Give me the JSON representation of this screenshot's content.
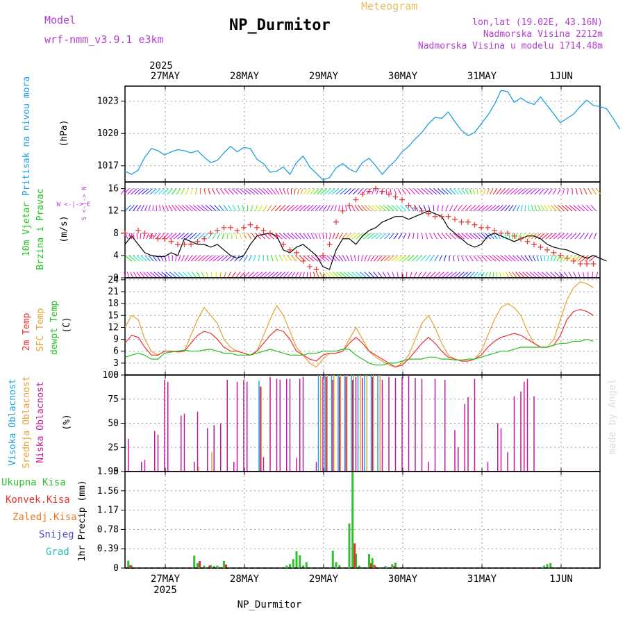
{
  "header": {
    "title": "NP_Durmitor",
    "subtitle": "Meteogram",
    "model_label": "Model",
    "model_name": "wrf-nmm_v3.9.1 e3km",
    "location": "lon,lat (19.02E, 43.16N)",
    "elevation": "Nadmorska Visina 2212m",
    "model_elevation": "Nadmorska Visina u modelu 1714.48m",
    "footer": "NP_Durmitor",
    "watermark": "made by Angel"
  },
  "colors": {
    "pressure": "#1ea0e0",
    "wind_speed": "#000000",
    "gust": "#e83030",
    "temp2m": "#e83030",
    "sfc_temp": "#e8a030",
    "dewpt": "#20c020",
    "cloud_high": "#20a0e0",
    "cloud_mid": "#e8a030",
    "cloud_low": "#c0189a",
    "precip_total": "#30c030",
    "precip_conv": "#e83030",
    "precip_frz": "#e87828",
    "precip_snow": "#4848e0",
    "precip_hail": "#20c0c0",
    "label_purple": "#b040d0",
    "label_gold": "#e8c060"
  },
  "time_axis": {
    "top_year": "2025",
    "bottom_year": "2025",
    "days": [
      "27MAY",
      "28MAY",
      "29MAY",
      "30MAY",
      "31MAY",
      "1JUN"
    ],
    "hours_total": 144
  },
  "chart_data": [
    {
      "type": "line",
      "panel": "pressure",
      "ylabel_title": "Pritisak na nivou mora",
      "ylabel_unit": "(hPa)",
      "ylim": [
        1015.5,
        1024.4
      ],
      "yticks": [
        1017,
        1020,
        1023
      ],
      "x_step_hours": 2,
      "values": [
        1016.5,
        1016.2,
        1016.6,
        1017.8,
        1018.6,
        1018.4,
        1018.0,
        1018.3,
        1018.5,
        1018.4,
        1018.2,
        1018.4,
        1017.8,
        1017.3,
        1017.5,
        1018.2,
        1018.8,
        1018.3,
        1018.7,
        1018.6,
        1017.6,
        1017.2,
        1016.4,
        1016.5,
        1016.9,
        1016.2,
        1017.3,
        1017.9,
        1016.9,
        1016.3,
        1015.7,
        1015.9,
        1016.8,
        1017.2,
        1016.7,
        1016.4,
        1017.3,
        1017.7,
        1017.0,
        1016.2,
        1016.9,
        1017.5,
        1018.3,
        1018.8,
        1019.5,
        1020.1,
        1020.9,
        1021.5,
        1021.4,
        1022.0,
        1021.1,
        1020.3,
        1019.8,
        1020.1,
        1020.9,
        1021.7,
        1022.7,
        1024.0,
        1023.9,
        1022.9,
        1023.3,
        1022.9,
        1022.7,
        1023.4,
        1022.6,
        1021.8,
        1021.0,
        1021.4,
        1021.8,
        1022.5,
        1023.1,
        1022.6,
        1022.5,
        1022.3,
        1021.4,
        1020.4
      ]
    },
    {
      "type": "line",
      "panel": "wind",
      "ylabel_title": "10m Vjetar",
      "ylabel_title2": "Brzina i Pravac",
      "ylabel_unit": "(m/s)",
      "direction_legend": "W <-|-> E",
      "direction_legend_ns": "S <-|-> N",
      "ylim": [
        0,
        17.2
      ],
      "yticks": [
        0,
        4,
        8,
        12,
        16
      ],
      "x_step_hours": 2,
      "series": [
        {
          "name": "wind_speed",
          "values": [
            6,
            7.5,
            6,
            4.5,
            4,
            3.8,
            3.8,
            4.5,
            4,
            7,
            6.5,
            6,
            6,
            5.5,
            6,
            5,
            4,
            3.5,
            4,
            6,
            7.5,
            7.8,
            8,
            7.5,
            5,
            4.5,
            5.5,
            6,
            5,
            4,
            2,
            1.5,
            5,
            7,
            7,
            6,
            7.5,
            8.5,
            9,
            10,
            10.5,
            11,
            11,
            10.5,
            11,
            11.5,
            12,
            11.5,
            11,
            9,
            8,
            7,
            6,
            5.5,
            6,
            7.5,
            8,
            7.5,
            7,
            6.5,
            7,
            7.5,
            7.5,
            7,
            6,
            5.5,
            5.2,
            5,
            4.5,
            4,
            3.5,
            4,
            3.5,
            3
          ]
        },
        {
          "name": "gust",
          "values": [
            8,
            7.5,
            8.5,
            8,
            7.5,
            7,
            7,
            6.5,
            6,
            6,
            6,
            6.5,
            7,
            8,
            8.5,
            9,
            9,
            8.5,
            9,
            9.5,
            9,
            8.5,
            8,
            7.5,
            6,
            5,
            4.5,
            3,
            2,
            1.5,
            4,
            6,
            10,
            12,
            13,
            14,
            15,
            15.5,
            16,
            15.5,
            15,
            14.5,
            14,
            13,
            12.5,
            12,
            11.5,
            11,
            11,
            11,
            10.5,
            10,
            10,
            9.5,
            9,
            9,
            8.5,
            8,
            8,
            7.5,
            7,
            6.5,
            6,
            5.5,
            5,
            4.5,
            4,
            3.5,
            3,
            2.5,
            2.5,
            2.5
          ]
        }
      ]
    },
    {
      "type": "line",
      "panel": "temperature",
      "ylabel_title": "2m Temp",
      "ylabel_title2": "SFC Temp",
      "ylabel_title3": "dewpt Temp",
      "ylabel_unit": "(C)",
      "ylim": [
        0,
        24.5
      ],
      "yticks": [
        0,
        3,
        6,
        9,
        12,
        15,
        18,
        21,
        24
      ],
      "x_step_hours": 2,
      "series": [
        {
          "name": "2m Temp",
          "values": [
            8,
            10,
            9.5,
            7,
            5,
            5,
            6,
            6,
            5.8,
            6,
            8,
            10,
            11,
            10.5,
            9,
            7,
            6,
            6,
            5.5,
            5,
            6,
            8,
            10,
            11.5,
            11,
            9,
            6,
            5,
            4,
            3.5,
            5,
            5.5,
            5.5,
            6,
            8,
            9.5,
            8,
            6,
            5,
            4,
            3,
            2,
            2.5,
            4,
            6,
            8,
            9.5,
            8,
            6,
            4.5,
            4,
            3.5,
            3.5,
            4,
            5,
            7,
            8.5,
            9.5,
            10,
            10.5,
            10,
            9,
            8,
            7,
            7,
            7.5,
            10,
            14,
            16,
            16.5,
            16,
            15
          ]
        },
        {
          "name": "SFC Temp",
          "values": [
            12,
            15,
            14,
            9,
            6,
            5,
            6,
            6,
            6,
            6,
            10,
            14,
            17,
            15,
            13,
            9,
            7,
            6,
            5.5,
            5,
            6,
            10,
            14,
            17.5,
            15,
            11,
            7,
            5,
            3,
            2,
            4,
            5.5,
            5.5,
            6,
            9,
            12,
            9,
            6,
            4.5,
            3.5,
            2.5,
            2,
            3,
            5,
            9,
            13,
            15,
            12,
            8,
            5,
            4,
            3.5,
            3.5,
            4,
            6,
            10,
            14,
            17,
            18,
            17,
            15,
            11,
            8,
            7,
            7,
            9,
            14,
            19,
            22,
            23.5,
            23,
            22
          ]
        },
        {
          "name": "dewpt Temp",
          "values": [
            4.5,
            5,
            5.5,
            5,
            4,
            4,
            5.5,
            5.8,
            6,
            6.3,
            6,
            6,
            6.3,
            6.5,
            6,
            5.5,
            5.5,
            5,
            5,
            5,
            5.5,
            6,
            6.5,
            6,
            5.5,
            5,
            5,
            5,
            5.5,
            5.5,
            6,
            6,
            6,
            6.5,
            6.5,
            5,
            4,
            3,
            2.5,
            2.5,
            3,
            3,
            3.5,
            4,
            4,
            4,
            4.5,
            4.5,
            4,
            4,
            3.8,
            3.8,
            4,
            4,
            4.5,
            5,
            5.5,
            6,
            6,
            6.5,
            7,
            7,
            7,
            7,
            7,
            7.5,
            8,
            8,
            8.5,
            8.5,
            9,
            8.5
          ]
        }
      ]
    },
    {
      "type": "bar",
      "panel": "clouds",
      "ylabel_title": "Visoka Oblacnost",
      "ylabel_title2": "Srednja Oblacnost",
      "ylabel_title3": "Niska Oblacnost",
      "ylabel_unit": "(%)",
      "ylim": [
        0,
        100
      ],
      "yticks": [
        0,
        25,
        50,
        75,
        100
      ],
      "series": [
        {
          "name": "Niska",
          "points": [
            [
              1,
              34
            ],
            [
              5,
              10
            ],
            [
              6,
              12
            ],
            [
              9,
              42
            ],
            [
              10,
              38
            ],
            [
              12,
              95
            ],
            [
              13,
              93
            ],
            [
              17,
              58
            ],
            [
              18,
              60
            ],
            [
              21,
              10
            ],
            [
              22,
              62
            ],
            [
              25,
              45
            ],
            [
              27,
              48
            ],
            [
              29,
              50
            ],
            [
              31,
              95
            ],
            [
              33,
              10
            ],
            [
              34,
              93
            ],
            [
              36,
              95
            ],
            [
              37,
              93
            ],
            [
              41,
              88
            ],
            [
              42,
              15
            ],
            [
              44,
              98
            ],
            [
              46,
              96
            ],
            [
              47,
              95
            ],
            [
              49,
              96
            ],
            [
              50,
              96
            ],
            [
              52,
              14
            ],
            [
              53,
              96
            ],
            [
              54,
              98
            ],
            [
              58,
              10
            ],
            [
              60,
              98
            ],
            [
              61,
              98
            ],
            [
              63,
              95
            ],
            [
              65,
              98
            ],
            [
              67,
              98
            ],
            [
              69,
              95
            ],
            [
              70,
              98
            ],
            [
              72,
              97
            ],
            [
              75,
              98
            ],
            [
              78,
              95
            ],
            [
              80,
              98
            ],
            [
              82,
              97
            ],
            [
              84,
              98
            ],
            [
              86,
              100
            ],
            [
              88,
              97
            ],
            [
              90,
              96
            ],
            [
              92,
              10
            ],
            [
              94,
              96
            ],
            [
              97,
              95
            ],
            [
              100,
              43
            ],
            [
              101,
              25
            ],
            [
              103,
              70
            ],
            [
              104,
              77
            ],
            [
              106,
              96
            ],
            [
              110,
              10
            ],
            [
              113,
              50
            ],
            [
              114,
              45
            ],
            [
              116,
              20
            ],
            [
              118,
              78
            ],
            [
              120,
              83
            ],
            [
              121,
              93
            ],
            [
              122,
              96
            ],
            [
              124,
              78
            ]
          ]
        },
        {
          "name": "Srednja",
          "points": [
            [
              22,
              5
            ],
            [
              26,
              20
            ],
            [
              41,
              88
            ],
            [
              59,
              100
            ],
            [
              61,
              100
            ],
            [
              63,
              100
            ],
            [
              65,
              100
            ],
            [
              67,
              100
            ],
            [
              69,
              100
            ],
            [
              71,
              100
            ],
            [
              73,
              100
            ],
            [
              75,
              100
            ],
            [
              77,
              100
            ]
          ]
        },
        {
          "name": "Visoka",
          "points": [
            [
              40,
              94
            ],
            [
              58,
              100
            ],
            [
              60,
              100
            ],
            [
              62,
              100
            ],
            [
              64,
              100
            ],
            [
              66,
              100
            ],
            [
              68,
              100
            ],
            [
              70,
              100
            ],
            [
              72,
              100
            ],
            [
              74,
              100
            ],
            [
              76,
              100
            ]
          ]
        }
      ]
    },
    {
      "type": "bar",
      "panel": "precip",
      "ylabel_unit": "1hr Precip (mm)",
      "legend": [
        "Ukupna Kisa",
        "Konvek.Kisa",
        "Zaledj.Kisa",
        "Snijeg",
        "Grad"
      ],
      "ylim": [
        0,
        1.95
      ],
      "yticks": [
        0,
        0.39,
        0.78,
        1.17,
        1.56,
        1.95
      ],
      "ytick_labels": [
        "0",
        "0.39",
        "0.78",
        "1.17",
        "1.56",
        "1.95"
      ],
      "series": [
        {
          "name": "Ukupna Kisa",
          "points": [
            [
              1,
              0.15
            ],
            [
              2,
              0.05
            ],
            [
              21,
              0.25
            ],
            [
              22,
              0.1
            ],
            [
              24,
              0.05
            ],
            [
              26,
              0.06
            ],
            [
              27,
              0.04
            ],
            [
              28,
              0.05
            ],
            [
              30,
              0.14
            ],
            [
              49,
              0.05
            ],
            [
              50,
              0.08
            ],
            [
              51,
              0.18
            ],
            [
              52,
              0.34
            ],
            [
              53,
              0.26
            ],
            [
              54,
              0.05
            ],
            [
              55,
              0.12
            ],
            [
              63,
              0.35
            ],
            [
              64,
              0.12
            ],
            [
              65,
              0.06
            ],
            [
              68,
              0.9
            ],
            [
              69,
              1.94
            ],
            [
              70,
              0.29
            ],
            [
              71,
              0.05
            ],
            [
              74,
              0.28
            ],
            [
              75,
              0.2
            ],
            [
              76,
              0.03
            ],
            [
              79,
              0.04
            ],
            [
              81,
              0.08
            ],
            [
              82,
              0.11
            ],
            [
              127,
              0.05
            ],
            [
              128,
              0.08
            ],
            [
              129,
              0.1
            ]
          ]
        },
        {
          "name": "Konvek.Kisa",
          "points": [
            [
              1,
              0.06
            ],
            [
              22,
              0.14
            ],
            [
              25,
              0.05
            ],
            [
              30,
              0.07
            ],
            [
              69,
              0.5
            ],
            [
              74,
              0.1
            ],
            [
              75,
              0.06
            ],
            [
              81,
              0.04
            ]
          ]
        }
      ]
    }
  ]
}
